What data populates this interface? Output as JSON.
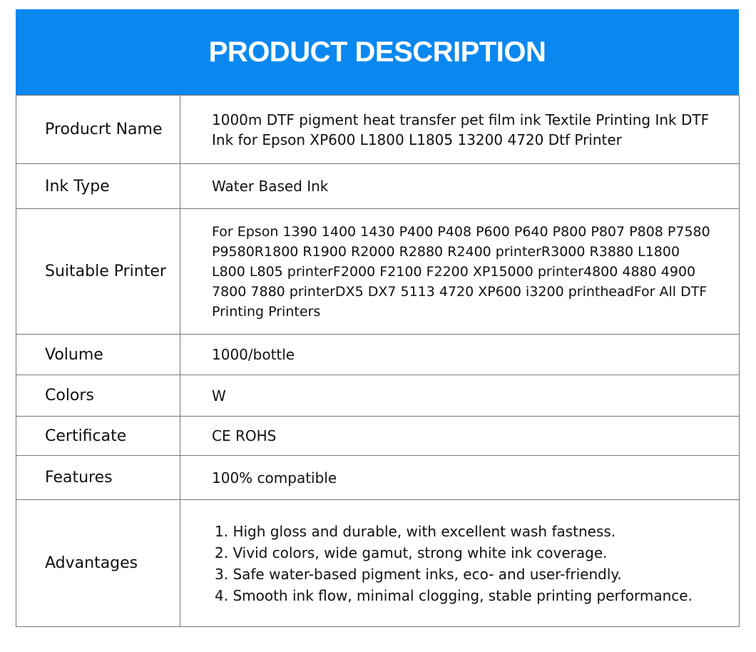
{
  "header": {
    "title": "PRODUCT DESCRIPTION",
    "color": "#0a88f0"
  },
  "rows": [
    {
      "label": "Producrt Name",
      "value": "1000m DTF pigment heat transfer pet film ink Textile Printing Ink DTF Ink for Epson  XP600  L1800  L1805  13200  4720  Dtf Printer"
    },
    {
      "label": "Ink Type",
      "value": "Water Based Ink"
    },
    {
      "label": "Suitable Printer",
      "value": "For Epson 1390  1400  1430  P400  P408  P600  P640  P800  P807  P808 P7580 P9580R1800  R1900  R2000  R2880  R2400  printerR3000  R3880 L1800  L800 L805  printerF2000  F2100  F2200  XP15000  printer4800 4880  4900  7800 7880  printerDX5  DX7 5113  4720  XP600  i3200 printheadFor  All DTF Printing  Printers"
    },
    {
      "label": "Volume",
      "value": "1000/bottle"
    },
    {
      "label": "Colors",
      "value": "W"
    },
    {
      "label": "Certificate",
      "value": "CE ROHS"
    },
    {
      "label": "Features",
      "value": "100% compatible"
    },
    {
      "label": "Advantages",
      "items": [
        "1. High gloss and durable, with excellent wash fastness.",
        "2. Vivid colors, wide gamut, strong white ink coverage.",
        "3. Safe water-based pigment inks, eco- and user-friendly.",
        "4. Smooth ink flow, minimal clogging, stable printing performance."
      ]
    }
  ]
}
